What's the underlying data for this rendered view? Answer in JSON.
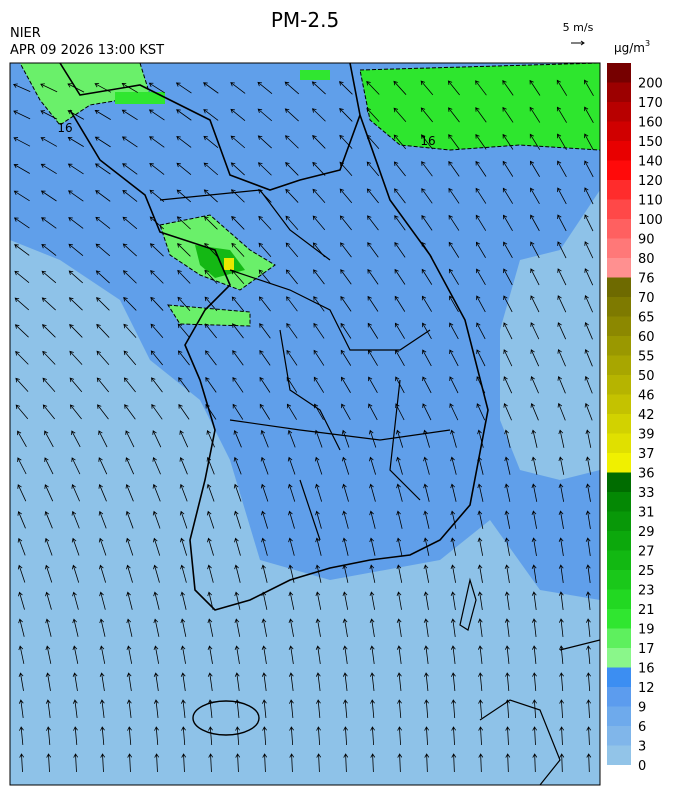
{
  "header": {
    "title": "PM-2.5",
    "agency": "NIER",
    "timestamp": "APR 09 2026 13:00 KST",
    "wind_reference": "5 m/s",
    "unit": "μg/m",
    "unit_exponent": "3"
  },
  "map": {
    "contour_labels": [
      "16",
      "16"
    ]
  },
  "colorbar": {
    "levels": [
      0,
      3,
      6,
      9,
      12,
      16,
      17,
      19,
      21,
      23,
      25,
      27,
      29,
      31,
      33,
      36,
      37,
      39,
      42,
      46,
      50,
      55,
      60,
      65,
      70,
      76,
      80,
      90,
      100,
      110,
      120,
      140,
      150,
      160,
      170,
      200
    ],
    "colors": [
      "#92c4e8",
      "#80b6ea",
      "#6eaaec",
      "#5c9cee",
      "#3c8ef2",
      "#8af78a",
      "#5ef05e",
      "#30e630",
      "#22d822",
      "#1ac81a",
      "#12b812",
      "#0ca80c",
      "#089808",
      "#048804",
      "#006c00",
      "#f0f000",
      "#e0e000",
      "#d2d200",
      "#c4c200",
      "#b6b400",
      "#a8a600",
      "#9a9800",
      "#8c8800",
      "#7e7a00",
      "#6e6a00",
      "#ff9090",
      "#ff7878",
      "#ff6060",
      "#ff4848",
      "#ff2c2c",
      "#ff0a0a",
      "#e80000",
      "#d00000",
      "#b80000",
      "#9c0000",
      "#760000"
    ]
  }
}
